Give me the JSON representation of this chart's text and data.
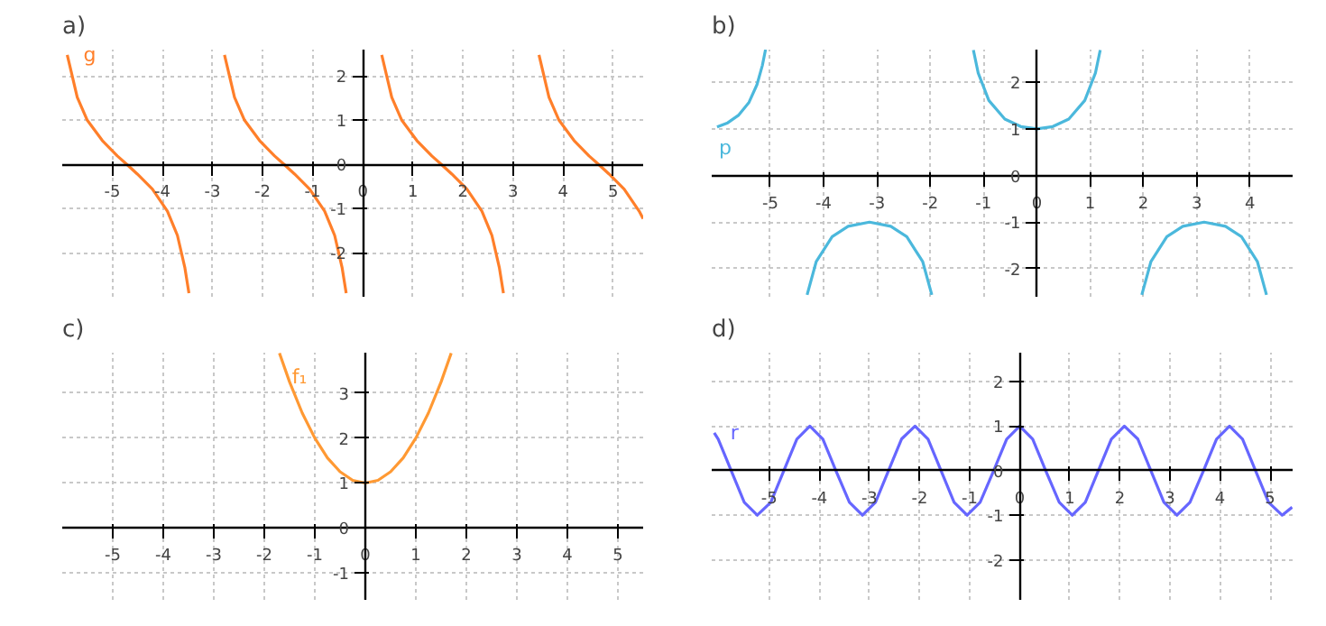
{
  "chart_data": [
    {
      "type": "line",
      "title": "a)",
      "xlim": [
        -6.0,
        5.6
      ],
      "ylim": [
        -3.0,
        2.6
      ],
      "xticks": [
        -5,
        -4,
        -3,
        -2,
        -1,
        0,
        1,
        2,
        3,
        4,
        5
      ],
      "yticks": [
        -2,
        -1,
        0,
        1,
        2
      ],
      "grid": true,
      "annotations": [
        "g"
      ],
      "series": [
        {
          "color": "#ff7f2a",
          "x": [
            -5.9,
            -5.7,
            -5.5,
            -5.2,
            -4.9,
            -4.71,
            -4.5,
            -4.2,
            -3.9,
            -3.7,
            -3.55,
            -3.47,
            -3.1,
            -2.76,
            -2.56,
            -2.36,
            -2.06,
            -1.76,
            -1.57,
            -1.36,
            -1.06,
            -0.76,
            -0.56,
            -0.41,
            -0.33,
            0.0,
            0.38,
            0.58,
            0.78,
            1.08,
            1.38,
            1.57,
            1.78,
            2.08,
            2.38,
            2.58,
            2.73,
            2.81,
            3.1,
            3.52,
            3.72,
            3.92,
            4.22,
            4.52,
            4.71,
            4.92,
            5.22,
            5.52,
            5.6
          ],
          "values": [
            2.48,
            1.52,
            1.0,
            0.54,
            0.19,
            0,
            -0.22,
            -0.56,
            -1.06,
            -1.61,
            -2.35,
            -2.92,
            null,
            2.48,
            1.52,
            1.0,
            0.54,
            0.19,
            0,
            -0.22,
            -0.56,
            -1.06,
            -1.61,
            -2.35,
            -2.92,
            null,
            2.48,
            1.52,
            1.0,
            0.54,
            0.19,
            0,
            -0.22,
            -0.56,
            -1.06,
            -1.61,
            -2.35,
            -2.92,
            null,
            2.48,
            1.52,
            1.0,
            0.54,
            0.19,
            0,
            -0.22,
            -0.56,
            -1.06,
            -1.23
          ]
        }
      ]
    },
    {
      "type": "line",
      "title": "b)",
      "xlim": [
        -6.1,
        4.8
      ],
      "ylim": [
        -2.6,
        2.7
      ],
      "xticks": [
        -5,
        -4,
        -3,
        -2,
        -1,
        0,
        1,
        2,
        3,
        4
      ],
      "yticks": [
        -2,
        -1,
        0,
        1,
        2
      ],
      "grid": true,
      "annotations": [
        "p"
      ],
      "series": [
        {
          "color": "#4bb8dc",
          "x": [
            -6.0,
            -5.8,
            -5.6,
            -5.4,
            -5.25,
            -5.15,
            -5.09,
            -4.7,
            -4.31,
            -4.14,
            -3.84,
            -3.54,
            -3.14,
            -2.74,
            -2.44,
            -2.14,
            -1.97,
            -1.6,
            -1.19,
            -1.1,
            -0.9,
            -0.6,
            -0.3,
            0,
            0.3,
            0.6,
            0.9,
            1.1,
            1.19,
            1.6,
            1.97,
            2.14,
            2.44,
            2.74,
            3.14,
            3.54,
            3.84,
            4.14,
            4.31
          ],
          "values": [
            1.04,
            1.13,
            1.29,
            1.57,
            1.95,
            2.36,
            2.7,
            null,
            -2.56,
            -1.85,
            -1.31,
            -1.09,
            -1,
            -1.09,
            -1.31,
            -1.85,
            -2.56,
            null,
            2.69,
            2.2,
            1.61,
            1.21,
            1.05,
            1,
            1.05,
            1.21,
            1.61,
            2.2,
            2.69,
            null,
            -2.56,
            -1.85,
            -1.31,
            -1.09,
            -1,
            -1.09,
            -1.31,
            -1.85,
            -2.56
          ]
        }
      ]
    },
    {
      "type": "line",
      "title": "c)",
      "xlim": [
        -6.0,
        5.5
      ],
      "ylim": [
        -1.6,
        3.9
      ],
      "xticks": [
        -5,
        -4,
        -3,
        -2,
        -1,
        0,
        1,
        2,
        3,
        4,
        5
      ],
      "yticks": [
        -1,
        0,
        1,
        2,
        3
      ],
      "grid": true,
      "annotations": [
        {
          "text": "f₁",
          "x": -1.45,
          "y": 3.35
        }
      ],
      "series": [
        {
          "color": "#ff9933",
          "x": [
            -1.7,
            -1.5,
            -1.25,
            -1,
            -0.75,
            -0.5,
            -0.25,
            0,
            0.25,
            0.5,
            0.75,
            1,
            1.25,
            1.5,
            1.7
          ],
          "values": [
            3.89,
            3.25,
            2.56,
            2,
            1.56,
            1.25,
            1.06,
            1,
            1.06,
            1.25,
            1.56,
            2,
            2.56,
            3.25,
            3.89
          ]
        }
      ]
    },
    {
      "type": "line",
      "title": "d)",
      "xlim": [
        -6.15,
        5.45
      ],
      "ylim": [
        -2.9,
        2.65
      ],
      "xticks": [
        -5,
        -4,
        -3,
        -2,
        -1,
        0,
        1,
        2,
        3,
        4,
        5
      ],
      "yticks": [
        -2,
        -1,
        0,
        1,
        2
      ],
      "grid": true,
      "annotations": [
        "r"
      ],
      "series": [
        {
          "color": "#6666ff",
          "x": [
            -6.1,
            -6.02,
            -5.76,
            -5.5,
            -5.24,
            -4.97,
            -4.71,
            -4.45,
            -4.19,
            -3.93,
            -3.67,
            -3.4,
            -3.14,
            -2.88,
            -2.62,
            -2.36,
            -2.09,
            -1.83,
            -1.57,
            -1.31,
            -1.05,
            -0.79,
            -0.52,
            -0.26,
            0,
            0.26,
            0.52,
            0.79,
            1.05,
            1.31,
            1.57,
            1.83,
            2.09,
            2.36,
            2.62,
            2.88,
            3.14,
            3.4,
            3.67,
            3.93,
            4.19,
            4.45,
            4.71,
            4.97,
            5.24,
            5.44
          ],
          "values": [
            0.85,
            0.71,
            0,
            -0.71,
            -1,
            -0.71,
            0,
            0.71,
            1,
            0.71,
            0,
            -0.71,
            -1,
            -0.71,
            0,
            0.71,
            1,
            0.71,
            0,
            -0.71,
            -1,
            -0.71,
            0,
            0.71,
            1,
            0.71,
            0,
            -0.71,
            -1,
            -0.71,
            0,
            0.71,
            1,
            0.71,
            0,
            -0.71,
            -1,
            -0.71,
            0,
            0.71,
            1,
            0.71,
            0,
            -0.71,
            -1,
            -0.82
          ]
        }
      ]
    }
  ]
}
